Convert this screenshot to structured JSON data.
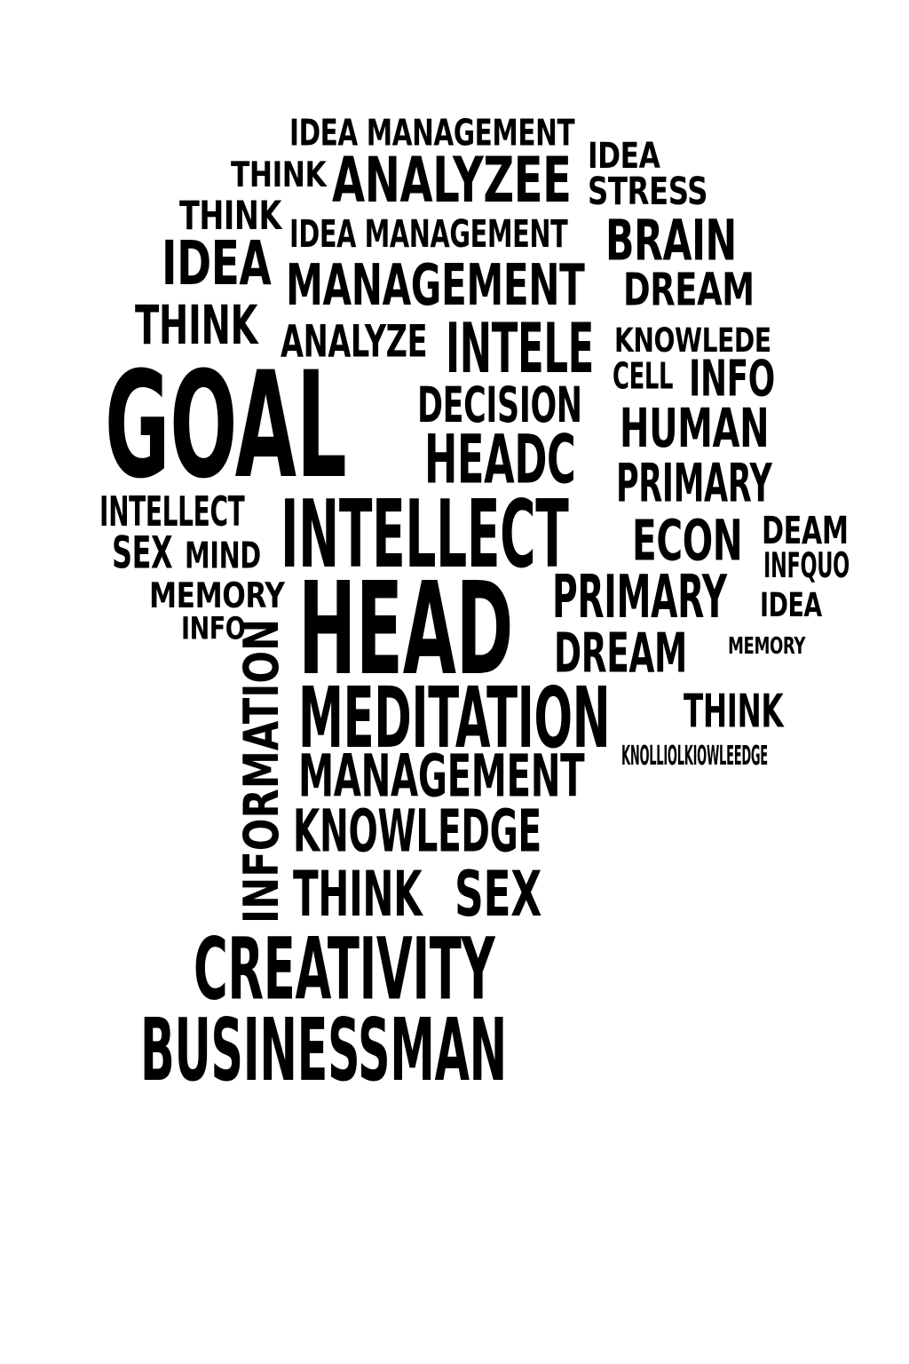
{
  "words": [
    "IDEA MANAGEMENT",
    "IDEA",
    "THINK",
    "ANALYZEE",
    "STRESS",
    "THINK",
    "IDEA MANAGEMENT",
    "BRAIN",
    "IDEA",
    "MANAGEMENT",
    "DREAM",
    "THINK",
    "ANALYZE",
    "INTELE",
    "KNOWLEDE",
    "CELL",
    "INFO",
    "GOAL",
    "DECISION",
    "HUMAN",
    "HEADC",
    "PRIMARY",
    "INTELLECT",
    "INTELLECT",
    "ECON",
    "DEAM",
    "SEX",
    "MIND",
    "INFQUO",
    "MEMORY",
    "HEAD",
    "PRIMARY",
    "IDEA",
    "INFO",
    "DREAM",
    "MEMORY",
    "INFORMATION",
    "MEDITATION",
    "THINK",
    "KNOLLIOLKIOWLEEDGE",
    "MANAGEMENT",
    "KNOWLEDGE",
    "THINK",
    "SEX",
    "CREATIVITY",
    "BUSINESSMAN"
  ]
}
